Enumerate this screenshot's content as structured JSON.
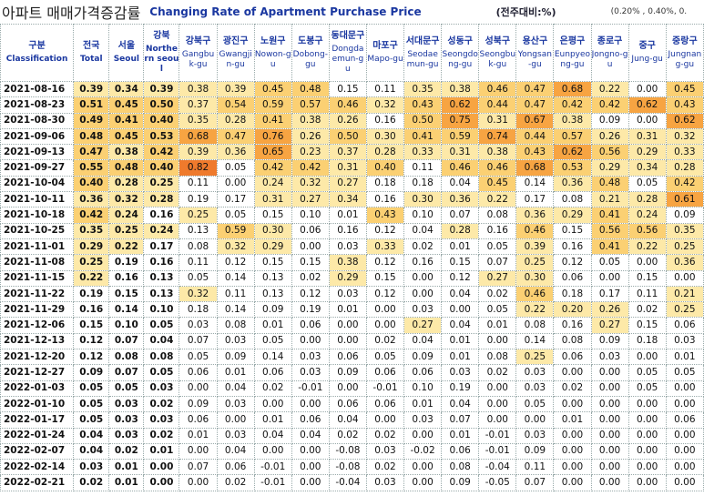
{
  "header": {
    "title_ko": "아파트 매매가격증감률",
    "title_en": "Changing Rate of Apartment Purchase Price",
    "unit": "(전주대비:%)",
    "legend_note": "(0.20% , 0.40%, 0."
  },
  "table": {
    "columns": [
      {
        "ko": "구분",
        "en": "Classification"
      },
      {
        "ko": "전국",
        "en": "Total"
      },
      {
        "ko": "서울",
        "en": "Seoul"
      },
      {
        "ko": "강북",
        "en": "Northern seoul"
      },
      {
        "ko": "강북구",
        "en": "Gangbuk-gu"
      },
      {
        "ko": "광진구",
        "en": "Gwangjin-gu"
      },
      {
        "ko": "노원구",
        "en": "Nowon-gu"
      },
      {
        "ko": "도봉구",
        "en": "Dobong-gu"
      },
      {
        "ko": "동대문구",
        "en": "Dongdaemun-gu"
      },
      {
        "ko": "마포구",
        "en": "Mapo-gu"
      },
      {
        "ko": "서대문구",
        "en": "Seodaemun-gu"
      },
      {
        "ko": "성동구",
        "en": "Seongdong-gu"
      },
      {
        "ko": "성북구",
        "en": "Seongbuk-gu"
      },
      {
        "ko": "용산구",
        "en": "Yongsan-gu"
      },
      {
        "ko": "은평구",
        "en": "Eunpyeong-gu"
      },
      {
        "ko": "종로구",
        "en": "Jongno-gu"
      },
      {
        "ko": "중구",
        "en": "Jung-gu"
      },
      {
        "ko": "중랑구",
        "en": "Jungnang-gu"
      }
    ],
    "rows": [
      [
        "2021-08-16",
        "0.39",
        "0.34",
        "0.39",
        "0.38",
        "0.39",
        "0.45",
        "0.48",
        "0.15",
        "0.11",
        "0.35",
        "0.38",
        "0.46",
        "0.47",
        "0.68",
        "0.22",
        "0.00",
        "0.45"
      ],
      [
        "2021-08-23",
        "0.51",
        "0.45",
        "0.50",
        "0.37",
        "0.54",
        "0.59",
        "0.57",
        "0.46",
        "0.32",
        "0.43",
        "0.62",
        "0.44",
        "0.47",
        "0.42",
        "0.42",
        "0.62",
        "0.43"
      ],
      [
        "2021-08-30",
        "0.49",
        "0.41",
        "0.40",
        "0.35",
        "0.28",
        "0.41",
        "0.38",
        "0.26",
        "0.16",
        "0.50",
        "0.75",
        "0.31",
        "0.67",
        "0.38",
        "0.09",
        "0.00",
        "0.62"
      ],
      [
        "2021-09-06",
        "0.48",
        "0.45",
        "0.53",
        "0.68",
        "0.47",
        "0.76",
        "0.26",
        "0.50",
        "0.30",
        "0.41",
        "0.59",
        "0.74",
        "0.44",
        "0.57",
        "0.26",
        "0.31",
        "0.32"
      ],
      [
        "2021-09-13",
        "0.47",
        "0.38",
        "0.42",
        "0.39",
        "0.36",
        "0.65",
        "0.23",
        "0.37",
        "0.28",
        "0.33",
        "0.31",
        "0.38",
        "0.43",
        "0.62",
        "0.56",
        "0.29",
        "0.33"
      ],
      [
        "2021-09-27",
        "0.55",
        "0.48",
        "0.40",
        "0.82",
        "0.05",
        "0.42",
        "0.42",
        "0.31",
        "0.40",
        "0.11",
        "0.46",
        "0.46",
        "0.68",
        "0.53",
        "0.29",
        "0.34",
        "0.28"
      ],
      [
        "2021-10-04",
        "0.40",
        "0.28",
        "0.25",
        "0.11",
        "0.00",
        "0.24",
        "0.32",
        "0.27",
        "0.18",
        "0.18",
        "0.04",
        "0.45",
        "0.14",
        "0.36",
        "0.48",
        "0.05",
        "0.42"
      ],
      [
        "2021-10-11",
        "0.36",
        "0.32",
        "0.28",
        "0.19",
        "0.17",
        "0.31",
        "0.27",
        "0.34",
        "0.16",
        "0.30",
        "0.36",
        "0.22",
        "0.17",
        "0.08",
        "0.21",
        "0.28",
        "0.61"
      ],
      [
        "2021-10-18",
        "0.42",
        "0.24",
        "0.16",
        "0.25",
        "0.05",
        "0.15",
        "0.10",
        "0.01",
        "0.43",
        "0.10",
        "0.07",
        "0.08",
        "0.36",
        "0.29",
        "0.41",
        "0.24",
        "0.09"
      ],
      [
        "2021-10-25",
        "0.35",
        "0.25",
        "0.24",
        "0.13",
        "0.59",
        "0.30",
        "0.06",
        "0.16",
        "0.12",
        "0.04",
        "0.28",
        "0.16",
        "0.46",
        "0.15",
        "0.56",
        "0.56",
        "0.35"
      ],
      [
        "2021-11-01",
        "0.29",
        "0.22",
        "0.17",
        "0.08",
        "0.32",
        "0.29",
        "0.00",
        "0.03",
        "0.33",
        "0.02",
        "0.01",
        "0.05",
        "0.39",
        "0.16",
        "0.41",
        "0.22",
        "0.25"
      ],
      [
        "2021-11-08",
        "0.25",
        "0.19",
        "0.16",
        "0.11",
        "0.12",
        "0.15",
        "0.15",
        "0.38",
        "0.12",
        "0.16",
        "0.15",
        "0.07",
        "0.25",
        "0.12",
        "0.05",
        "0.00",
        "0.36"
      ],
      [
        "2021-11-15",
        "0.22",
        "0.16",
        "0.13",
        "0.05",
        "0.14",
        "0.13",
        "0.02",
        "0.29",
        "0.15",
        "0.00",
        "0.12",
        "0.27",
        "0.30",
        "0.06",
        "0.00",
        "0.15",
        "0.00"
      ],
      [
        "2021-11-22",
        "0.19",
        "0.15",
        "0.13",
        "0.32",
        "0.11",
        "0.13",
        "0.12",
        "0.03",
        "0.12",
        "0.00",
        "0.04",
        "0.02",
        "0.46",
        "0.18",
        "0.17",
        "0.11",
        "0.21"
      ],
      [
        "2021-11-29",
        "0.16",
        "0.14",
        "0.10",
        "0.18",
        "0.14",
        "0.09",
        "0.19",
        "0.01",
        "0.00",
        "0.03",
        "0.00",
        "0.05",
        "0.22",
        "0.20",
        "0.26",
        "0.02",
        "0.25"
      ],
      [
        "2021-12-06",
        "0.15",
        "0.10",
        "0.05",
        "0.03",
        "0.08",
        "0.01",
        "0.06",
        "0.00",
        "0.00",
        "0.27",
        "0.04",
        "0.01",
        "0.08",
        "0.16",
        "0.27",
        "0.15",
        "0.06"
      ],
      [
        "2021-12-13",
        "0.12",
        "0.07",
        "0.04",
        "0.07",
        "0.03",
        "0.05",
        "0.00",
        "0.00",
        "0.02",
        "0.04",
        "0.01",
        "0.00",
        "0.14",
        "0.08",
        "0.09",
        "0.18",
        "0.03"
      ],
      [
        "2021-12-20",
        "0.12",
        "0.08",
        "0.08",
        "0.05",
        "0.09",
        "0.14",
        "0.03",
        "0.06",
        "0.05",
        "0.09",
        "0.01",
        "0.08",
        "0.25",
        "0.06",
        "0.03",
        "0.00",
        "0.01"
      ],
      [
        "2021-12-27",
        "0.09",
        "0.07",
        "0.05",
        "0.06",
        "0.01",
        "0.06",
        "0.03",
        "0.09",
        "0.06",
        "0.06",
        "0.03",
        "0.02",
        "0.03",
        "0.00",
        "0.00",
        "0.05",
        "0.05"
      ],
      [
        "2022-01-03",
        "0.05",
        "0.05",
        "0.03",
        "0.00",
        "0.04",
        "0.02",
        "-0.01",
        "0.00",
        "-0.01",
        "0.10",
        "0.19",
        "0.00",
        "0.03",
        "0.02",
        "0.00",
        "0.05",
        "0.00"
      ],
      [
        "2022-01-10",
        "0.05",
        "0.03",
        "0.02",
        "0.09",
        "0.03",
        "0.00",
        "0.00",
        "0.06",
        "0.06",
        "0.01",
        "0.04",
        "0.00",
        "0.05",
        "0.00",
        "0.00",
        "0.00",
        "0.00"
      ],
      [
        "2022-01-17",
        "0.05",
        "0.03",
        "0.03",
        "0.06",
        "0.00",
        "0.01",
        "0.06",
        "0.04",
        "0.00",
        "0.03",
        "0.07",
        "0.00",
        "0.00",
        "0.01",
        "0.00",
        "0.00",
        "0.06"
      ],
      [
        "2022-01-24",
        "0.04",
        "0.03",
        "0.02",
        "0.01",
        "0.03",
        "0.04",
        "0.04",
        "0.02",
        "0.02",
        "0.00",
        "0.01",
        "-0.01",
        "0.03",
        "0.00",
        "0.00",
        "0.00",
        "0.00"
      ],
      [
        "2022-02-07",
        "0.04",
        "0.02",
        "0.01",
        "0.00",
        "0.04",
        "0.00",
        "0.00",
        "-0.08",
        "0.03",
        "-0.02",
        "0.06",
        "-0.01",
        "0.09",
        "0.00",
        "0.00",
        "0.00",
        "0.00"
      ],
      [
        "2022-02-14",
        "0.03",
        "0.01",
        "0.00",
        "0.07",
        "0.06",
        "-0.01",
        "0.00",
        "-0.08",
        "0.02",
        "0.00",
        "0.08",
        "-0.04",
        "0.11",
        "0.00",
        "0.00",
        "0.00",
        "0.00"
      ],
      [
        "2022-02-21",
        "0.02",
        "0.01",
        "0.00",
        "0.00",
        "0.02",
        "-0.01",
        "0.00",
        "-0.04",
        "0.03",
        "0.00",
        "0.09",
        "-0.05",
        "0.07",
        "0.00",
        "0.00",
        "0.00",
        "0.00"
      ]
    ]
  },
  "color_scale": [
    {
      "min": 0.2,
      "color": "#fde9a8"
    },
    {
      "min": 0.4,
      "color": "#fbd073"
    },
    {
      "min": 0.6,
      "color": "#f7a442"
    },
    {
      "min": 0.8,
      "color": "#ef7a2c"
    }
  ]
}
